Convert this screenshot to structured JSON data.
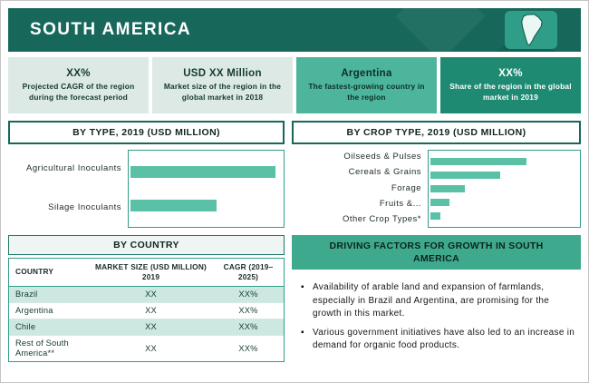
{
  "page": {
    "title": "SOUTH AMERICA"
  },
  "colors": {
    "header_bg": "#17685b",
    "map_tile_bg": "#2f9e88",
    "bar_fill": "#5ac1a7",
    "stat_light_bg": "#dce9e5",
    "stat_medium_bg": "#4db59b",
    "stat_dark_bg": "#1f8a72",
    "table_row_highlight": "#cde8e1",
    "driving_header_bg": "#3fa98e"
  },
  "stats": [
    {
      "value": "XX%",
      "desc": "Projected CAGR of the region during the forecast period",
      "style": "light"
    },
    {
      "value": "USD XX Million",
      "desc": "Market size of the region in the global market in 2018",
      "style": "light"
    },
    {
      "value": "Argentina",
      "desc": "The fastest-growing country in the region",
      "style": "medium"
    },
    {
      "value": "XX%",
      "desc": "Share of the region in the global market in 2019",
      "style": "dark"
    }
  ],
  "sections": {
    "by_type": "BY TYPE, 2019 (USD MILLION)",
    "by_crop": "BY CROP TYPE, 2019 (USD MILLION)",
    "by_country": "BY COUNTRY",
    "driving": "DRIVING FACTORS FOR GROWTH IN SOUTH AMERICA"
  },
  "chart_data": [
    {
      "type": "bar",
      "orientation": "horizontal",
      "title": "BY TYPE, 2019 (USD MILLION)",
      "categories": [
        "Agricultural Inoculants",
        "Silage Inoculants"
      ],
      "values": [
        96,
        57
      ],
      "value_unit": "percent-of-plot-width (actual USD values not labeled, shown as XX)",
      "grid": false,
      "legend": false
    },
    {
      "type": "bar",
      "orientation": "horizontal",
      "title": "BY CROP TYPE, 2019 (USD MILLION)",
      "categories": [
        "Oilseeds & Pulses",
        "Cereals & Grains",
        "Forage",
        "Fruits &...",
        "Other Crop Types*"
      ],
      "values": [
        65,
        47,
        23,
        13,
        7
      ],
      "value_unit": "percent-of-plot-width (actual USD values not labeled, shown as XX)",
      "grid": false,
      "legend": false
    }
  ],
  "table": {
    "headers": [
      "COUNTRY",
      "MARKET SIZE (USD MILLION) 2019",
      "CAGR (2019–2025)"
    ],
    "rows": [
      {
        "country": "Brazil",
        "size": "XX",
        "cagr": "XX%"
      },
      {
        "country": "Argentina",
        "size": "XX",
        "cagr": "XX%"
      },
      {
        "country": "Chile",
        "size": "XX",
        "cagr": "XX%"
      },
      {
        "country": "Rest of South America**",
        "size": "XX",
        "cagr": "XX%"
      }
    ]
  },
  "driving_factors": [
    "Availability of arable land and expansion of farmlands, especially in Brazil and Argentina, are promising for the growth in this market.",
    "Various government initiatives have also led to an increase in demand for organic food products."
  ]
}
